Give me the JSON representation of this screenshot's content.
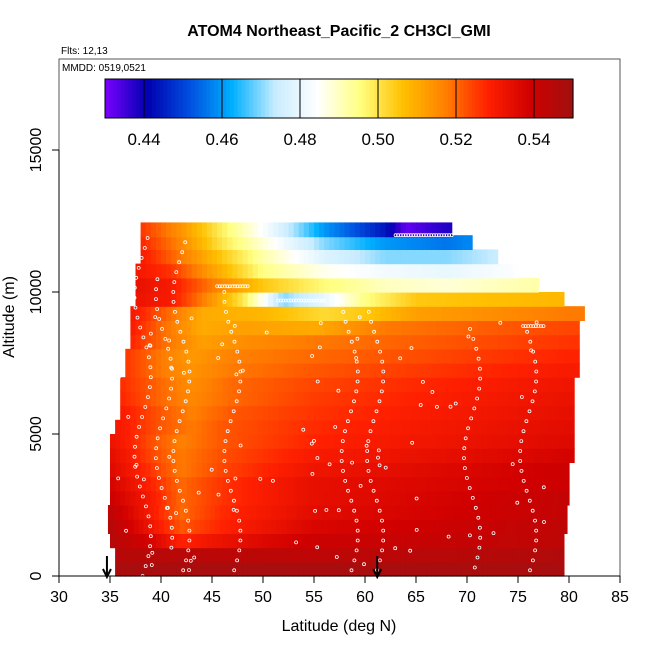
{
  "chart_data": {
    "type": "heatmap",
    "title": "ATOM4 Northeast_Pacific_2 CH3Cl_GMI",
    "subtitle_flights": "Flts: 12,13",
    "subtitle_dates": "MMDD: 0519,0521",
    "xlabel": "Latitude (deg N)",
    "ylabel": "Altitude (m)",
    "xlim": [
      30,
      85
    ],
    "ylim": [
      0,
      17500
    ],
    "x_ticks": [
      "30",
      "35",
      "40",
      "45",
      "50",
      "55",
      "60",
      "65",
      "70",
      "75",
      "80",
      "85"
    ],
    "y_ticks": [
      "0",
      "5000",
      "10000",
      "15000"
    ],
    "colorbar": {
      "range": [
        0.43,
        0.55
      ],
      "ticks": [
        "0.44",
        "0.46",
        "0.48",
        "0.50",
        "0.52",
        "0.54"
      ],
      "colors": [
        "#7a00ff",
        "#0000b0",
        "#0050e0",
        "#00b0ff",
        "#c8ecff",
        "#ffffff",
        "#ffff80",
        "#ffc000",
        "#ff8000",
        "#ff2000",
        "#d00000",
        "#a01010"
      ]
    },
    "arrows_latitude": [
      34.7,
      61.2
    ],
    "colors": {
      "frame": "#555555",
      "track": "#ffffff"
    },
    "curtain_rows": [
      {
        "alt": 250,
        "lat_range": [
          35.5,
          79.5
        ],
        "stops": [
          [
            35,
            0.548
          ],
          [
            80,
            0.548
          ]
        ]
      },
      {
        "alt": 750,
        "lat_range": [
          35.5,
          79.5
        ],
        "stops": [
          [
            35,
            0.545
          ],
          [
            55,
            0.543
          ],
          [
            80,
            0.546
          ]
        ]
      },
      {
        "alt": 1250,
        "lat_range": [
          35.0,
          79.5
        ],
        "stops": [
          [
            35,
            0.545
          ],
          [
            39,
            0.538
          ],
          [
            42,
            0.528
          ],
          [
            46,
            0.533
          ],
          [
            55,
            0.54
          ],
          [
            80,
            0.543
          ]
        ]
      },
      {
        "alt": 1750,
        "lat_range": [
          34.8,
          79.5
        ],
        "stops": [
          [
            35,
            0.545
          ],
          [
            39,
            0.532
          ],
          [
            42,
            0.522
          ],
          [
            46,
            0.528
          ],
          [
            55,
            0.537
          ],
          [
            80,
            0.543
          ]
        ]
      },
      {
        "alt": 2250,
        "lat_range": [
          34.8,
          79.5
        ],
        "stops": [
          [
            35,
            0.543
          ],
          [
            39,
            0.53
          ],
          [
            42,
            0.52
          ],
          [
            46,
            0.527
          ],
          [
            55,
            0.535
          ],
          [
            80,
            0.542
          ]
        ]
      },
      {
        "alt": 2750,
        "lat_range": [
          35.0,
          80.0
        ],
        "stops": [
          [
            35,
            0.54
          ],
          [
            39,
            0.53
          ],
          [
            42,
            0.52
          ],
          [
            46,
            0.526
          ],
          [
            55,
            0.534
          ],
          [
            80,
            0.542
          ]
        ]
      },
      {
        "alt": 3250,
        "lat_range": [
          35.0,
          80.0
        ],
        "stops": [
          [
            35,
            0.538
          ],
          [
            39,
            0.528
          ],
          [
            42,
            0.52
          ],
          [
            46,
            0.526
          ],
          [
            55,
            0.534
          ],
          [
            80,
            0.54
          ]
        ]
      },
      {
        "alt": 3750,
        "lat_range": [
          35.0,
          80.0
        ],
        "stops": [
          [
            35,
            0.536
          ],
          [
            39,
            0.526
          ],
          [
            42,
            0.518
          ],
          [
            46,
            0.524
          ],
          [
            55,
            0.532
          ],
          [
            80,
            0.54
          ]
        ]
      },
      {
        "alt": 4250,
        "lat_range": [
          35.0,
          80.5
        ],
        "stops": [
          [
            35,
            0.535
          ],
          [
            39,
            0.524
          ],
          [
            42,
            0.518
          ],
          [
            46,
            0.523
          ],
          [
            55,
            0.53
          ],
          [
            80,
            0.538
          ]
        ]
      },
      {
        "alt": 4750,
        "lat_range": [
          35.0,
          80.5
        ],
        "stops": [
          [
            35,
            0.533
          ],
          [
            39,
            0.523
          ],
          [
            42,
            0.517
          ],
          [
            46,
            0.522
          ],
          [
            55,
            0.528
          ],
          [
            80,
            0.536
          ]
        ]
      },
      {
        "alt": 5250,
        "lat_range": [
          35.5,
          80.5
        ],
        "stops": [
          [
            35,
            0.532
          ],
          [
            40,
            0.522
          ],
          [
            43,
            0.518
          ],
          [
            46,
            0.522
          ],
          [
            55,
            0.527
          ],
          [
            80,
            0.535
          ]
        ]
      },
      {
        "alt": 5750,
        "lat_range": [
          36.0,
          80.5
        ],
        "stops": [
          [
            36,
            0.53
          ],
          [
            40,
            0.522
          ],
          [
            43,
            0.517
          ],
          [
            47,
            0.522
          ],
          [
            55,
            0.526
          ],
          [
            80,
            0.534
          ]
        ]
      },
      {
        "alt": 6250,
        "lat_range": [
          36.0,
          80.5
        ],
        "stops": [
          [
            36,
            0.528
          ],
          [
            40,
            0.52
          ],
          [
            43,
            0.516
          ],
          [
            47,
            0.52
          ],
          [
            55,
            0.525
          ],
          [
            80,
            0.533
          ]
        ]
      },
      {
        "alt": 6750,
        "lat_range": [
          36.0,
          80.5
        ],
        "stops": [
          [
            36,
            0.527
          ],
          [
            40,
            0.52
          ],
          [
            43,
            0.515
          ],
          [
            47,
            0.52
          ],
          [
            55,
            0.524
          ],
          [
            80,
            0.532
          ]
        ]
      },
      {
        "alt": 7250,
        "lat_range": [
          36.5,
          81.0
        ],
        "stops": [
          [
            36,
            0.527
          ],
          [
            40,
            0.518
          ],
          [
            43,
            0.514
          ],
          [
            47,
            0.518
          ],
          [
            55,
            0.522
          ],
          [
            80,
            0.53
          ]
        ]
      },
      {
        "alt": 7750,
        "lat_range": [
          36.5,
          81.0
        ],
        "stops": [
          [
            36,
            0.527
          ],
          [
            40,
            0.518
          ],
          [
            43,
            0.513
          ],
          [
            47,
            0.517
          ],
          [
            55,
            0.52
          ],
          [
            80,
            0.528
          ]
        ]
      },
      {
        "alt": 8250,
        "lat_range": [
          37.0,
          81.0
        ],
        "stops": [
          [
            37,
            0.528
          ],
          [
            40,
            0.52
          ],
          [
            44,
            0.512
          ],
          [
            48,
            0.515
          ],
          [
            55,
            0.518
          ],
          [
            80,
            0.526
          ]
        ]
      },
      {
        "alt": 8750,
        "lat_range": [
          37.0,
          81.0
        ],
        "stops": [
          [
            37,
            0.53
          ],
          [
            40,
            0.52
          ],
          [
            44,
            0.51
          ],
          [
            48,
            0.512
          ],
          [
            55,
            0.51
          ],
          [
            62,
            0.518
          ],
          [
            80,
            0.524
          ]
        ]
      },
      {
        "alt": 9250,
        "lat_range": [
          37.0,
          81.5
        ],
        "stops": [
          [
            37,
            0.531
          ],
          [
            40,
            0.522
          ],
          [
            44,
            0.51
          ],
          [
            50,
            0.508
          ],
          [
            56,
            0.502
          ],
          [
            60,
            0.505
          ],
          [
            65,
            0.512
          ],
          [
            80,
            0.518
          ]
        ]
      },
      {
        "alt": 9750,
        "lat_range": [
          37.5,
          79.5
        ],
        "stops": [
          [
            37,
            0.533
          ],
          [
            41,
            0.53
          ],
          [
            44,
            0.518
          ],
          [
            48,
            0.5
          ],
          [
            52,
            0.47
          ],
          [
            56,
            0.48
          ],
          [
            60,
            0.495
          ],
          [
            65,
            0.505
          ],
          [
            80,
            0.508
          ]
        ]
      },
      {
        "alt": 10250,
        "lat_range": [
          37.5,
          77.0
        ],
        "stops": [
          [
            37,
            0.534
          ],
          [
            41,
            0.53
          ],
          [
            45,
            0.518
          ],
          [
            50,
            0.505
          ],
          [
            56,
            0.496
          ],
          [
            62,
            0.49
          ],
          [
            68,
            0.488
          ],
          [
            77,
            0.492
          ]
        ]
      },
      {
        "alt": 10750,
        "lat_range": [
          37.5,
          75.0
        ],
        "stops": [
          [
            37,
            0.532
          ],
          [
            41,
            0.526
          ],
          [
            45,
            0.512
          ],
          [
            50,
            0.495
          ],
          [
            56,
            0.486
          ],
          [
            62,
            0.482
          ],
          [
            68,
            0.48
          ],
          [
            75,
            0.484
          ]
        ]
      },
      {
        "alt": 11250,
        "lat_range": [
          38.0,
          73.0
        ],
        "stops": [
          [
            38,
            0.53
          ],
          [
            42,
            0.518
          ],
          [
            46,
            0.505
          ],
          [
            50,
            0.492
          ],
          [
            56,
            0.478
          ],
          [
            62,
            0.47
          ],
          [
            68,
            0.47
          ],
          [
            73,
            0.474
          ]
        ]
      },
      {
        "alt": 11750,
        "lat_range": [
          38.0,
          70.5
        ],
        "stops": [
          [
            38,
            0.528
          ],
          [
            42,
            0.516
          ],
          [
            46,
            0.5
          ],
          [
            50,
            0.488
          ],
          [
            56,
            0.47
          ],
          [
            62,
            0.46
          ],
          [
            68,
            0.456
          ],
          [
            70,
            0.458
          ]
        ]
      },
      {
        "alt": 12200,
        "lat_range": [
          38.0,
          68.5
        ],
        "stops": [
          [
            38,
            0.526
          ],
          [
            42,
            0.514
          ],
          [
            46,
            0.498
          ],
          [
            50,
            0.484
          ],
          [
            56,
            0.46
          ],
          [
            62,
            0.444
          ],
          [
            64,
            0.432
          ],
          [
            68,
            0.438
          ]
        ]
      }
    ]
  }
}
